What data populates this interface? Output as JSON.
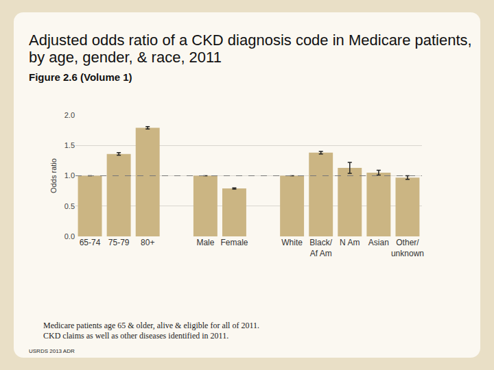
{
  "chart_data": {
    "type": "bar",
    "title": "Adjusted odds ratio of a CKD diagnosis code in Medicare patients, by age, gender, & race, 2011",
    "subtitle": "Figure 2.6 (Volume 1)",
    "y_label": "Odds ratio",
    "categories": [
      "65-74",
      "75-79",
      "80+",
      null,
      "Male",
      "Female",
      null,
      "White",
      "Black/ Af Am",
      "N Am",
      "Asian",
      "Other/ unknown"
    ],
    "values": [
      1.0,
      1.36,
      1.79,
      null,
      1.0,
      0.79,
      null,
      1.0,
      1.38,
      1.13,
      1.05,
      0.97
    ],
    "errors": [
      null,
      0.02,
      0.02,
      null,
      null,
      0.01,
      null,
      null,
      0.02,
      0.09,
      0.04,
      0.03
    ],
    "reference_line": 1.0,
    "color": "#cbb583",
    "ylim": [
      0,
      2.0
    ],
    "yticks": [
      {
        "value": 0,
        "label": "0.0"
      },
      {
        "value": 0.5,
        "label": "0.5"
      },
      {
        "value": 1.0,
        "label": "1.0"
      },
      {
        "value": 1.5,
        "label": "1.5"
      },
      {
        "value": 2.0,
        "label": "2.0"
      }
    ],
    "grid": true,
    "notes": [
      "Medicare patients age 65 & older, alive & eligible for all of 2011.",
      "CKD claims as well as other diseases identified in 2011."
    ],
    "source": "USRDS 2013 ADR"
  }
}
